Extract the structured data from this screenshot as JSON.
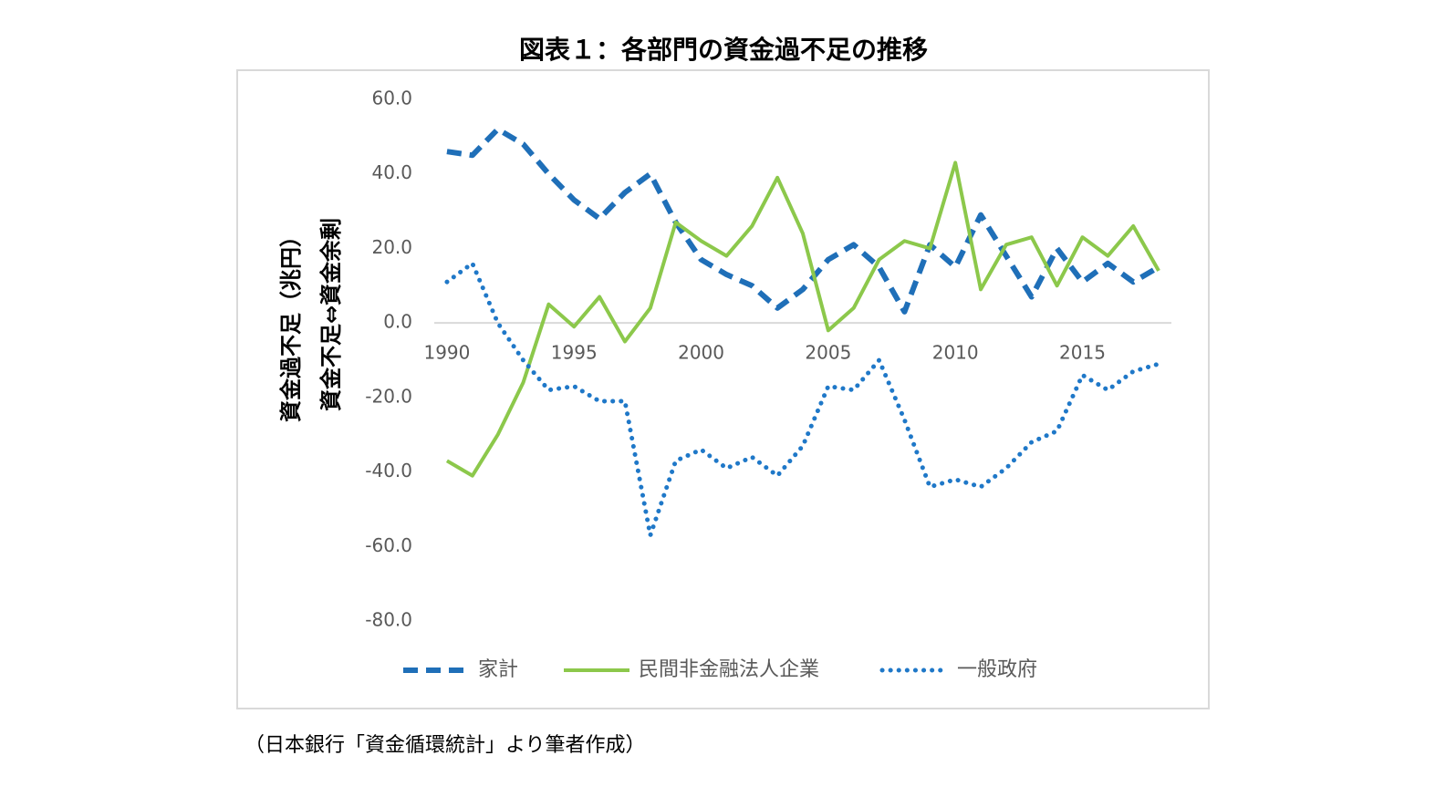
{
  "chart_data": {
    "type": "line",
    "title": "図表１：各部門の資金過不足の推移",
    "y_label": [
      "資金過不足（兆円）",
      "資金不足⇔資金余剰"
    ],
    "source": "（日本銀行「資金循環統計」より筆者作成）",
    "x": [
      1990,
      1991,
      1992,
      1993,
      1994,
      1995,
      1996,
      1997,
      1998,
      1999,
      2000,
      2001,
      2002,
      2003,
      2004,
      2005,
      2006,
      2007,
      2008,
      2009,
      2010,
      2011,
      2012,
      2013,
      2014,
      2015,
      2016,
      2017,
      2018
    ],
    "xlim": [
      1989.5,
      2018.5
    ],
    "xticks": [
      1990,
      1995,
      2000,
      2005,
      2010,
      2015
    ],
    "ylim": [
      -80,
      60
    ],
    "yticks": [
      {
        "value": -80,
        "label": "-80.0"
      },
      {
        "value": -60,
        "label": "-60.0"
      },
      {
        "value": -40,
        "label": "-40.0"
      },
      {
        "value": -20,
        "label": "-20.0"
      },
      {
        "value": 0,
        "label": "0.0"
      },
      {
        "value": 20,
        "label": "20.0"
      },
      {
        "value": 40,
        "label": "40.0"
      },
      {
        "value": 60,
        "label": "60.0"
      }
    ],
    "grid": false,
    "legend": "bottom",
    "series": [
      {
        "name": "家計",
        "color": "#1f6fb8",
        "style": "dashed",
        "values": [
          46,
          45,
          52,
          48,
          40,
          33,
          28,
          35,
          40,
          27,
          17,
          13,
          10,
          4,
          9,
          17,
          21,
          15,
          3,
          21,
          15,
          29,
          18,
          7,
          20,
          11,
          16,
          11,
          15
        ]
      },
      {
        "name": "民間非金融法人企業",
        "color": "#8cc84b",
        "style": "solid",
        "values": [
          -37,
          -41,
          -30,
          -16,
          5,
          -1,
          7,
          -5,
          4,
          27,
          22,
          18,
          26,
          39,
          24,
          -2,
          4,
          17,
          22,
          20,
          43,
          9,
          21,
          23,
          10,
          23,
          18,
          26,
          14
        ]
      },
      {
        "name": "一般政府",
        "color": "#1f78c8",
        "style": "dotted",
        "values": [
          11,
          16,
          0,
          -10,
          -18,
          -17,
          -21,
          -21,
          -57,
          -37,
          -34,
          -39,
          -36,
          -41,
          -33,
          -17,
          -18,
          -10,
          -26,
          -44,
          -42,
          -44,
          -39,
          -32,
          -29,
          -14,
          -18,
          -13,
          -11
        ]
      }
    ]
  }
}
